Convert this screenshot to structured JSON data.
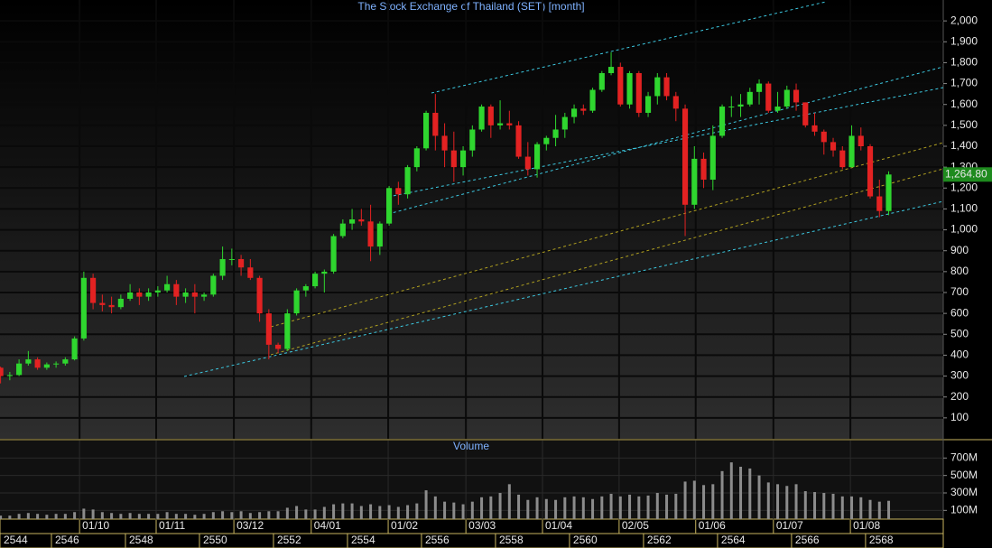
{
  "chart_data": {
    "type": "candlestick",
    "title": "The Stock Exchange of Thailand (SET) [month]",
    "x": [
      2544.625,
      2544.875,
      2545.125,
      2545.375,
      2545.625,
      2545.875,
      2546.125,
      2546.375,
      2546.625,
      2546.875,
      2547.125,
      2547.375,
      2547.625,
      2547.875,
      2548.125,
      2548.375,
      2548.625,
      2548.875,
      2549.125,
      2549.375,
      2549.625,
      2549.875,
      2550.125,
      2550.375,
      2550.625,
      2550.875,
      2551.125,
      2551.375,
      2551.625,
      2551.875,
      2552.125,
      2552.375,
      2552.625,
      2552.875,
      2553.125,
      2553.375,
      2553.625,
      2553.875,
      2554.125,
      2554.375,
      2554.625,
      2554.875,
      2555.125,
      2555.375,
      2555.625,
      2555.875,
      2556.125,
      2556.375,
      2556.625,
      2556.875,
      2557.125,
      2557.375,
      2557.625,
      2557.875,
      2558.125,
      2558.375,
      2558.625,
      2558.875,
      2559.125,
      2559.375,
      2559.625,
      2559.875,
      2560.125,
      2560.375,
      2560.625,
      2560.875,
      2561.125,
      2561.375,
      2561.625,
      2561.875,
      2562.125,
      2562.375,
      2562.625,
      2562.875,
      2563.125,
      2563.375,
      2563.625,
      2563.875,
      2564.125,
      2564.375,
      2564.625,
      2564.875,
      2565.125,
      2565.375,
      2565.625,
      2565.875,
      2566.125,
      2566.375,
      2566.625,
      2566.875,
      2567.125,
      2567.375,
      2567.625,
      2567.875,
      2568.125,
      2568.375,
      2568.625
    ],
    "ohlc": [
      [
        340,
        345,
        265,
        300
      ],
      [
        300,
        320,
        280,
        305
      ],
      [
        305,
        380,
        300,
        360
      ],
      [
        360,
        420,
        350,
        380
      ],
      [
        380,
        390,
        330,
        340
      ],
      [
        340,
        365,
        330,
        356
      ],
      [
        356,
        370,
        340,
        360
      ],
      [
        360,
        390,
        350,
        380
      ],
      [
        380,
        490,
        375,
        480
      ],
      [
        480,
        800,
        470,
        770
      ],
      [
        770,
        790,
        620,
        650
      ],
      [
        650,
        690,
        610,
        640
      ],
      [
        640,
        680,
        600,
        630
      ],
      [
        630,
        690,
        620,
        670
      ],
      [
        670,
        740,
        660,
        700
      ],
      [
        700,
        720,
        640,
        680
      ],
      [
        680,
        720,
        660,
        700
      ],
      [
        700,
        730,
        680,
        710
      ],
      [
        710,
        780,
        700,
        740
      ],
      [
        740,
        760,
        640,
        680
      ],
      [
        680,
        720,
        650,
        700
      ],
      [
        700,
        740,
        600,
        680
      ],
      [
        680,
        700,
        660,
        690
      ],
      [
        690,
        790,
        680,
        780
      ],
      [
        780,
        920,
        760,
        860
      ],
      [
        860,
        910,
        830,
        860
      ],
      [
        860,
        880,
        780,
        820
      ],
      [
        820,
        860,
        760,
        770
      ],
      [
        770,
        780,
        560,
        600
      ],
      [
        600,
        620,
        380,
        450
      ],
      [
        450,
        460,
        410,
        430
      ],
      [
        430,
        620,
        420,
        600
      ],
      [
        600,
        720,
        590,
        710
      ],
      [
        710,
        740,
        680,
        730
      ],
      [
        730,
        800,
        720,
        790
      ],
      [
        790,
        810,
        700,
        800
      ],
      [
        800,
        980,
        790,
        970
      ],
      [
        970,
        1050,
        960,
        1030
      ],
      [
        1030,
        1100,
        1000,
        1050
      ],
      [
        1050,
        1100,
        1020,
        1040
      ],
      [
        1040,
        1120,
        850,
        920
      ],
      [
        920,
        1040,
        880,
        1030
      ],
      [
        1030,
        1210,
        1020,
        1200
      ],
      [
        1200,
        1230,
        1120,
        1170
      ],
      [
        1170,
        1310,
        1150,
        1300
      ],
      [
        1300,
        1400,
        1280,
        1390
      ],
      [
        1390,
        1570,
        1380,
        1560
      ],
      [
        1560,
        1650,
        1380,
        1450
      ],
      [
        1450,
        1510,
        1300,
        1380
      ],
      [
        1380,
        1470,
        1230,
        1300
      ],
      [
        1300,
        1400,
        1260,
        1380
      ],
      [
        1380,
        1500,
        1350,
        1480
      ],
      [
        1480,
        1600,
        1470,
        1590
      ],
      [
        1590,
        1600,
        1440,
        1500
      ],
      [
        1500,
        1620,
        1480,
        1510
      ],
      [
        1510,
        1570,
        1480,
        1500
      ],
      [
        1500,
        1520,
        1340,
        1350
      ],
      [
        1350,
        1420,
        1260,
        1290
      ],
      [
        1290,
        1420,
        1250,
        1410
      ],
      [
        1410,
        1450,
        1380,
        1440
      ],
      [
        1440,
        1550,
        1400,
        1480
      ],
      [
        1480,
        1560,
        1440,
        1540
      ],
      [
        1540,
        1600,
        1510,
        1580
      ],
      [
        1580,
        1600,
        1550,
        1570
      ],
      [
        1570,
        1680,
        1560,
        1670
      ],
      [
        1670,
        1760,
        1660,
        1750
      ],
      [
        1750,
        1850,
        1740,
        1780
      ],
      [
        1780,
        1800,
        1590,
        1600
      ],
      [
        1600,
        1760,
        1580,
        1750
      ],
      [
        1750,
        1760,
        1540,
        1560
      ],
      [
        1560,
        1660,
        1540,
        1640
      ],
      [
        1640,
        1750,
        1600,
        1730
      ],
      [
        1730,
        1750,
        1620,
        1640
      ],
      [
        1640,
        1660,
        1520,
        1580
      ],
      [
        1580,
        1600,
        970,
        1120
      ],
      [
        1120,
        1400,
        1100,
        1340
      ],
      [
        1340,
        1370,
        1200,
        1240
      ],
      [
        1240,
        1500,
        1190,
        1450
      ],
      [
        1450,
        1600,
        1440,
        1590
      ],
      [
        1590,
        1640,
        1540,
        1590
      ],
      [
        1590,
        1650,
        1540,
        1600
      ],
      [
        1600,
        1680,
        1590,
        1660
      ],
      [
        1660,
        1720,
        1600,
        1700
      ],
      [
        1700,
        1710,
        1560,
        1570
      ],
      [
        1570,
        1660,
        1560,
        1590
      ],
      [
        1590,
        1690,
        1580,
        1670
      ],
      [
        1670,
        1700,
        1570,
        1610
      ],
      [
        1610,
        1610,
        1490,
        1500
      ],
      [
        1500,
        1560,
        1450,
        1470
      ],
      [
        1470,
        1480,
        1360,
        1420
      ],
      [
        1420,
        1440,
        1350,
        1380
      ],
      [
        1380,
        1400,
        1290,
        1300
      ],
      [
        1300,
        1500,
        1300,
        1450
      ],
      [
        1450,
        1490,
        1380,
        1400
      ],
      [
        1400,
        1410,
        1150,
        1160
      ],
      [
        1160,
        1240,
        1060,
        1090
      ],
      [
        1090,
        1280,
        1070,
        1264.8
      ]
    ],
    "xlim": [
      2544.61,
      2570.1
    ],
    "xticks": [
      2544,
      2546,
      2548,
      2550,
      2552,
      2554,
      2556,
      2558,
      2560,
      2562,
      2564,
      2566,
      2568
    ],
    "x2ticks": [
      {
        "value": 2546.76,
        "label": "01/10"
      },
      {
        "value": 2548.83,
        "label": "01/11"
      },
      {
        "value": 2550.93,
        "label": "03/12"
      },
      {
        "value": 2553.02,
        "label": "04/01"
      },
      {
        "value": 2555.1,
        "label": "01/02"
      },
      {
        "value": 2557.2,
        "label": "03/03"
      },
      {
        "value": 2559.27,
        "label": "01/04"
      },
      {
        "value": 2561.34,
        "label": "02/05"
      },
      {
        "value": 2563.41,
        "label": "01/06"
      },
      {
        "value": 2565.51,
        "label": "01/07"
      },
      {
        "value": 2567.59,
        "label": "01/08"
      }
    ],
    "ylim": [
      0,
      2100
    ],
    "yticks": [
      100,
      200,
      300,
      400,
      500,
      600,
      700,
      800,
      900,
      {
        "value": 1000,
        "label": "1,000"
      },
      {
        "value": 1100,
        "label": "1,100"
      },
      {
        "value": 1200,
        "label": "1,200"
      },
      {
        "value": 1300,
        "label": "1,300"
      },
      {
        "value": 1400,
        "label": "1,400"
      },
      {
        "value": 1500,
        "label": "1,500"
      },
      {
        "value": 1600,
        "label": "1,600"
      },
      {
        "value": 1700,
        "label": "1,700"
      },
      {
        "value": 1800,
        "label": "1,800"
      },
      {
        "value": 1900,
        "label": "1,900"
      },
      {
        "value": 2000,
        "label": "2,000"
      }
    ],
    "grid": true,
    "up_color": "#2fd62f",
    "down_color": "#e32222",
    "last_price": {
      "value": 1264.8,
      "label": "1,264.80"
    },
    "volume": {
      "title": "Volume",
      "color": "#8c8c8c",
      "values": [
        40000000,
        40000000,
        60000000,
        70000000,
        60000000,
        50000000,
        60000000,
        60000000,
        80000000,
        120000000,
        110000000,
        80000000,
        70000000,
        60000000,
        70000000,
        60000000,
        60000000,
        60000000,
        80000000,
        60000000,
        60000000,
        50000000,
        60000000,
        80000000,
        90000000,
        80000000,
        90000000,
        70000000,
        80000000,
        90000000,
        90000000,
        130000000,
        150000000,
        110000000,
        110000000,
        140000000,
        170000000,
        180000000,
        180000000,
        150000000,
        170000000,
        150000000,
        160000000,
        140000000,
        160000000,
        180000000,
        330000000,
        260000000,
        200000000,
        190000000,
        170000000,
        200000000,
        250000000,
        260000000,
        300000000,
        400000000,
        280000000,
        220000000,
        250000000,
        230000000,
        220000000,
        250000000,
        260000000,
        250000000,
        230000000,
        260000000,
        290000000,
        260000000,
        280000000,
        260000000,
        270000000,
        300000000,
        280000000,
        290000000,
        430000000,
        440000000,
        390000000,
        400000000,
        550000000,
        650000000,
        600000000,
        580000000,
        500000000,
        420000000,
        400000000,
        380000000,
        400000000,
        320000000,
        310000000,
        300000000,
        290000000,
        260000000,
        260000000,
        250000000,
        220000000,
        200000000,
        210000000
      ],
      "ylim": [
        0,
        900000000
      ],
      "yticks": [
        {
          "value": 100000000,
          "label": "100M"
        },
        {
          "value": 300000000,
          "label": "300M"
        },
        {
          "value": 500000000,
          "label": "500M"
        },
        {
          "value": 700000000,
          "label": "700M"
        }
      ]
    }
  }
}
